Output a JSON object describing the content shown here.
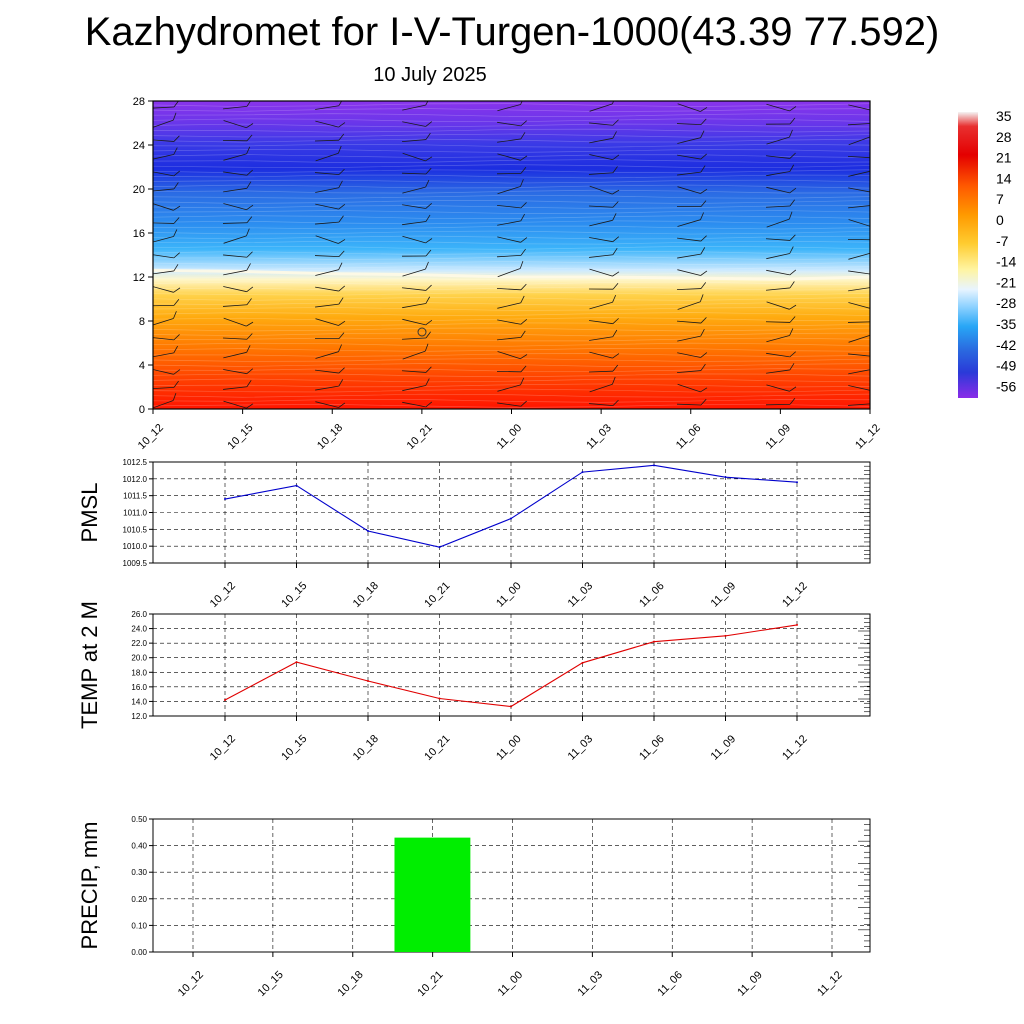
{
  "title": "Kazhydromet for I-V-Turgen-1000(43.39 77.592)",
  "subtitle": "10 July 2025",
  "colors": {
    "pmsl_line": "#0000cc",
    "temp_line": "#e00000",
    "precip_bar": "#00ee00"
  },
  "chart_data": [
    {
      "type": "heatmap",
      "name": "cross-section",
      "x": [
        "10_12",
        "10_15",
        "10_18",
        "10_21",
        "11_00",
        "11_03",
        "11_06",
        "11_09",
        "11_12"
      ],
      "y_ticks": [
        "0",
        "4",
        "8",
        "12",
        "16",
        "20",
        "24",
        "28"
      ],
      "ylim": [
        0,
        28
      ],
      "freezing_level": [
        12.6,
        12.5,
        12.3,
        12.2,
        12.0,
        12.0,
        11.9,
        11.8,
        12.0
      ],
      "colorbar": {
        "labels": [
          "35",
          "28",
          "21",
          "14",
          "7",
          "0",
          "-7",
          "-14",
          "-21",
          "-28",
          "-35",
          "-42",
          "-49",
          "-56"
        ],
        "range": [
          -60,
          39
        ]
      }
    },
    {
      "type": "line",
      "ylabel": "PMSL",
      "x": [
        "10_12",
        "10_15",
        "10_18",
        "10_21",
        "11_00",
        "11_03",
        "11_06",
        "11_09",
        "11_12"
      ],
      "values": [
        1011.4,
        1011.8,
        1010.45,
        1009.97,
        1010.82,
        1012.2,
        1012.4,
        1012.05,
        1011.9
      ],
      "ylim": [
        1009.5,
        1012.5
      ],
      "y_ticks": [
        "1009.5",
        "1010.0",
        "1010.5",
        "1011.0",
        "1011.5",
        "1012.0",
        "1012.5"
      ],
      "grid": true
    },
    {
      "type": "line",
      "ylabel": "TEMP at 2 M",
      "x": [
        "10_12",
        "10_15",
        "10_18",
        "10_21",
        "11_00",
        "11_03",
        "11_06",
        "11_09",
        "11_12"
      ],
      "values": [
        14.2,
        19.4,
        16.8,
        14.4,
        13.3,
        19.3,
        22.2,
        23.0,
        24.5
      ],
      "ylim": [
        12,
        26
      ],
      "y_ticks": [
        "12.0",
        "14.0",
        "16.0",
        "18.0",
        "20.0",
        "22.0",
        "24.0",
        "26.0"
      ],
      "grid": true
    },
    {
      "type": "bar",
      "ylabel": "PRECIP, mm",
      "categories": [
        "10_12",
        "10_15",
        "10_18",
        "10_21",
        "11_00",
        "11_03",
        "11_06",
        "11_09",
        "11_12"
      ],
      "values": [
        0,
        0,
        0.43,
        0,
        0,
        0,
        0,
        0,
        0
      ],
      "ylim": [
        0,
        0.5
      ],
      "y_ticks": [
        "0.00",
        "0.10",
        "0.20",
        "0.30",
        "0.40",
        "0.50"
      ],
      "grid": true
    }
  ]
}
